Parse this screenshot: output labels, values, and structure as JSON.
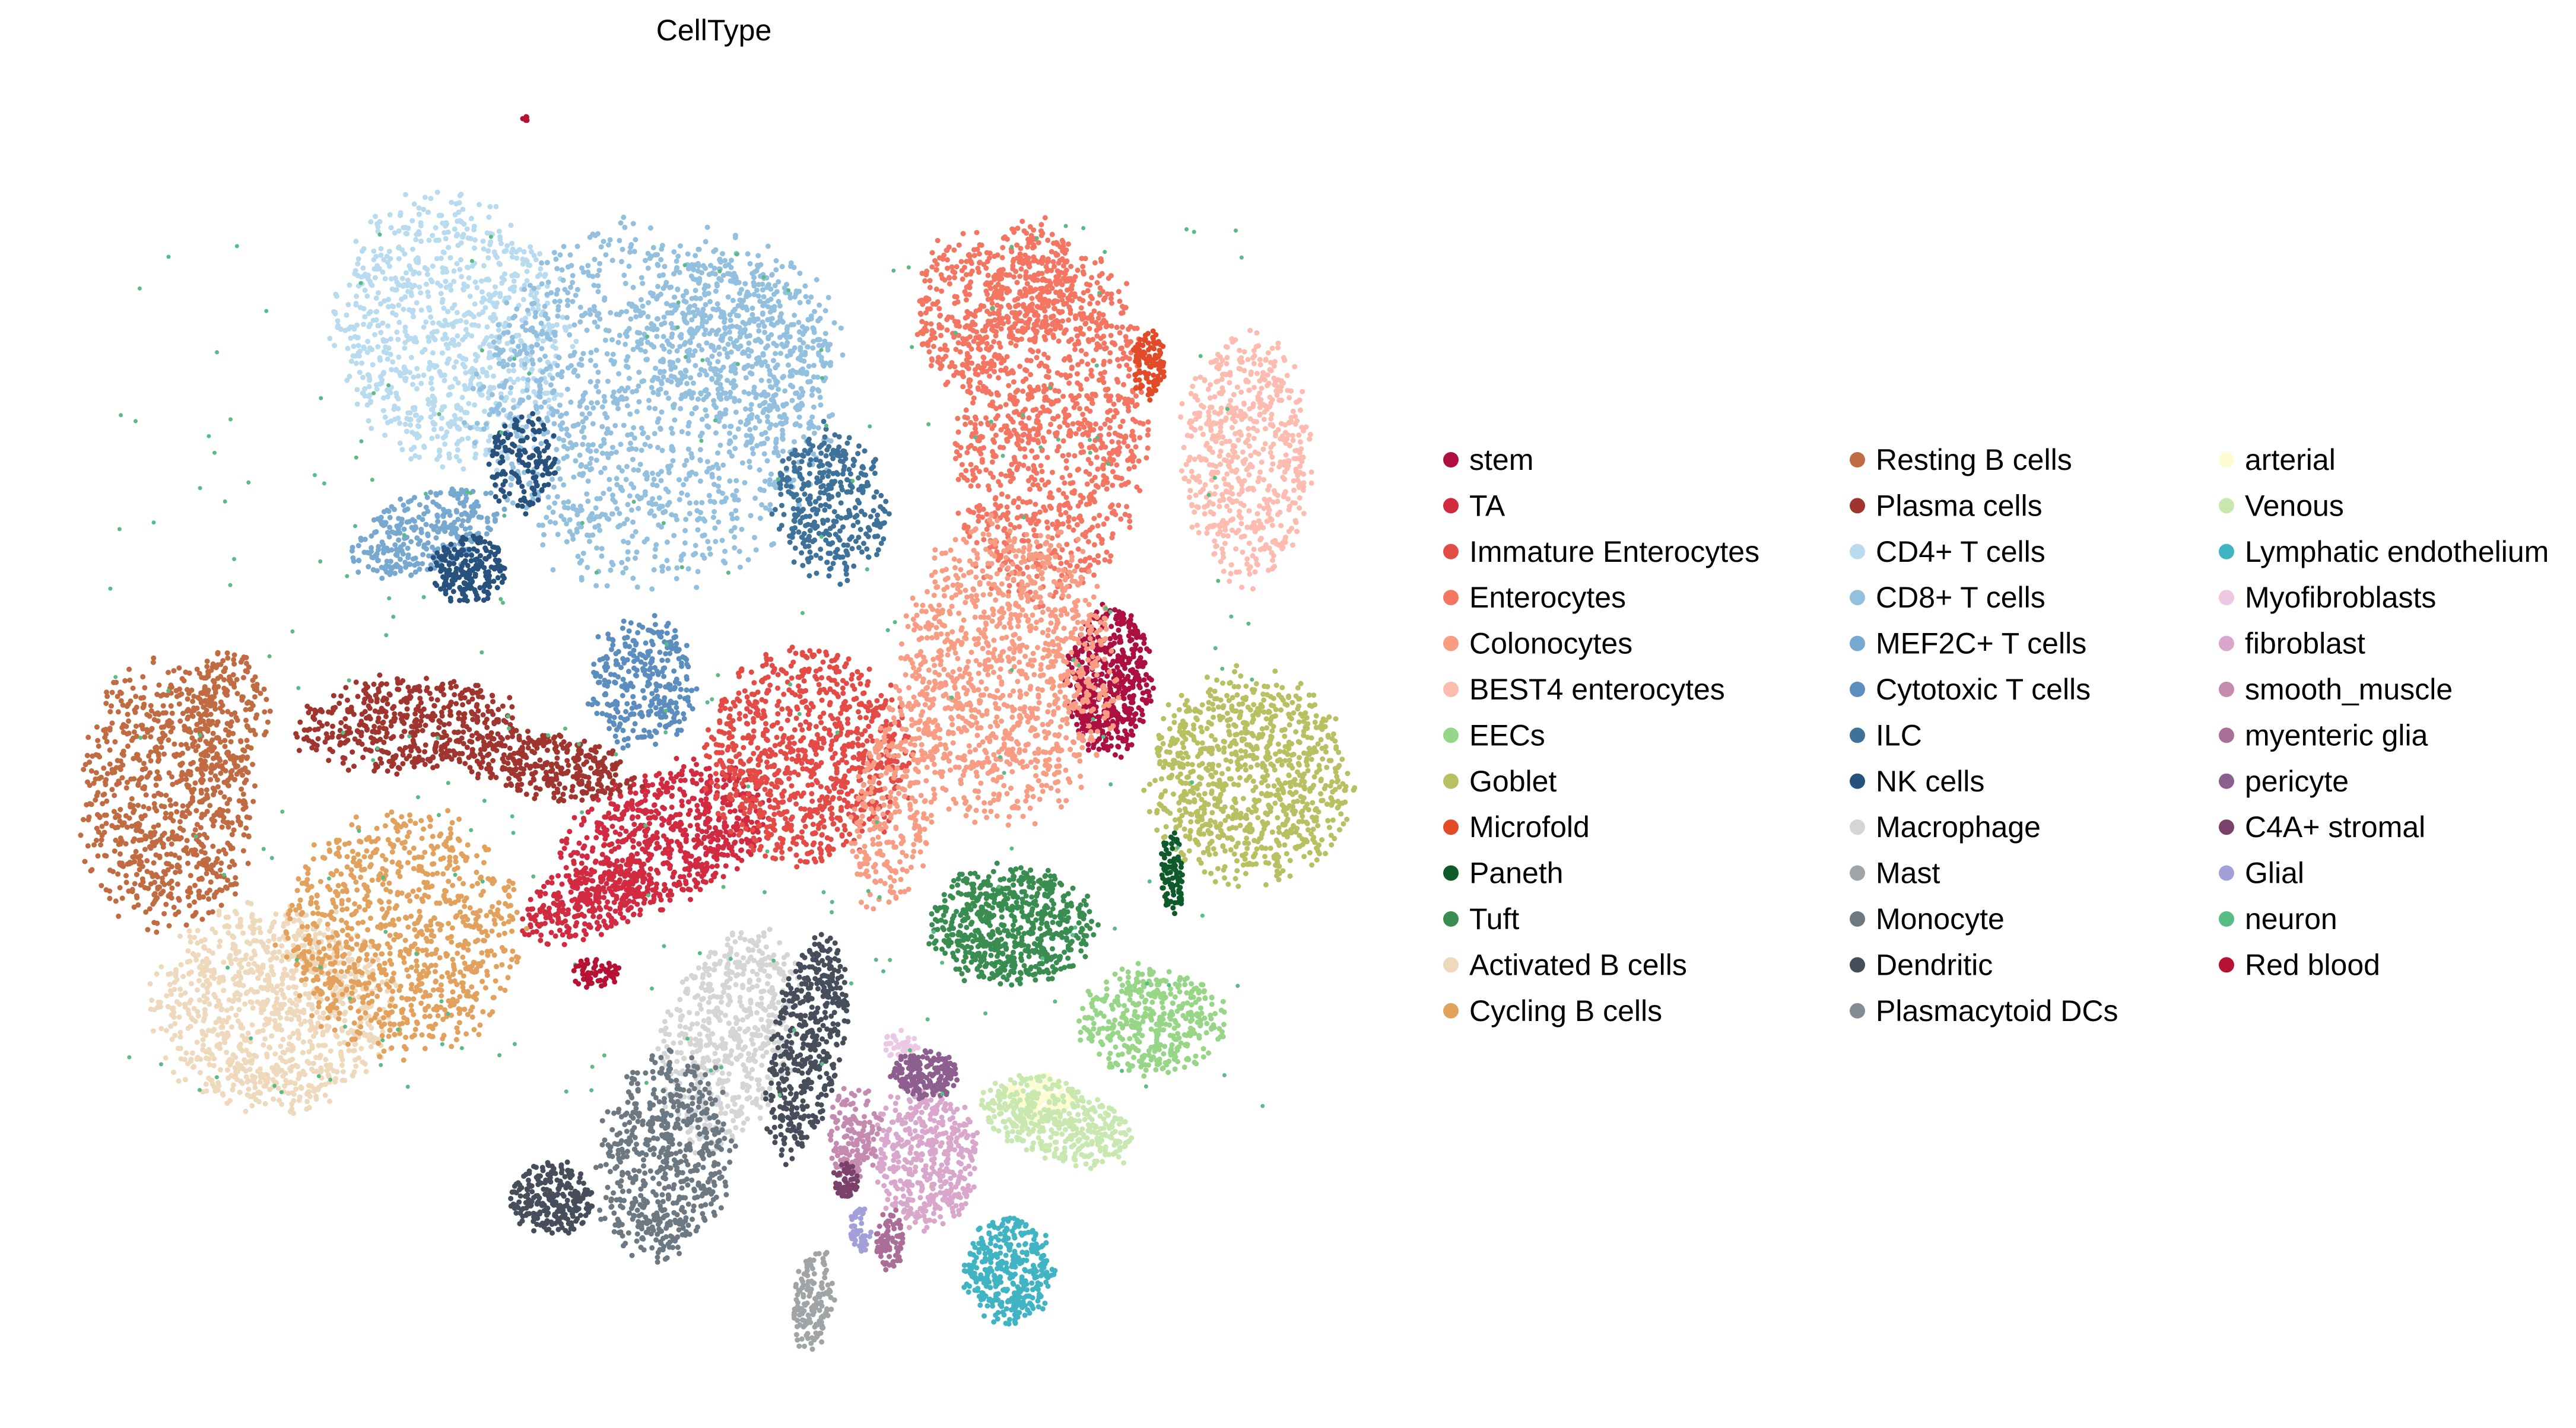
{
  "chart_data": {
    "type": "scatter",
    "title": "CellType",
    "xlabel": "",
    "ylabel": "",
    "grid": false,
    "axes_visible": false,
    "legend_placement": "right",
    "legend_columns": 3,
    "categories": [
      {
        "name": "stem",
        "color": "#ad1040"
      },
      {
        "name": "TA",
        "color": "#d22a40"
      },
      {
        "name": "Immature Enterocytes",
        "color": "#e54b46"
      },
      {
        "name": "Enterocytes",
        "color": "#f47562"
      },
      {
        "name": "Colonocytes",
        "color": "#f89c84"
      },
      {
        "name": "BEST4 enterocytes",
        "color": "#fdbcaf"
      },
      {
        "name": "EECs",
        "color": "#98d687"
      },
      {
        "name": "Goblet",
        "color": "#b8c062"
      },
      {
        "name": "Microfold",
        "color": "#e24a28"
      },
      {
        "name": "Paneth",
        "color": "#0e5a2a"
      },
      {
        "name": "Tuft",
        "color": "#3a8d51"
      },
      {
        "name": "Activated B cells",
        "color": "#eed9bc"
      },
      {
        "name": "Cycling B cells",
        "color": "#e2a25d"
      },
      {
        "name": "Resting B cells",
        "color": "#c16b42"
      },
      {
        "name": "Plasma cells",
        "color": "#a0352f"
      },
      {
        "name": "CD4+ T cells",
        "color": "#b9dbef"
      },
      {
        "name": "CD8+ T cells",
        "color": "#94c0df"
      },
      {
        "name": "MEF2C+ T cells",
        "color": "#77a8cf"
      },
      {
        "name": "Cytotoxic T cells",
        "color": "#5b8ebe"
      },
      {
        "name": "ILC",
        "color": "#3f729a"
      },
      {
        "name": "NK cells",
        "color": "#27527e"
      },
      {
        "name": "Macrophage",
        "color": "#d5d5d5"
      },
      {
        "name": "Mast",
        "color": "#a1a4a6"
      },
      {
        "name": "Monocyte",
        "color": "#6c7882"
      },
      {
        "name": "Dendritic",
        "color": "#474e5b"
      },
      {
        "name": "Plasmacytoid DCs",
        "color": "#858b92"
      },
      {
        "name": "arterial",
        "color": "#fdfbd0"
      },
      {
        "name": "Venous",
        "color": "#c8e8b0"
      },
      {
        "name": "Lymphatic endothelium",
        "color": "#40b4c2"
      },
      {
        "name": "Myofibroblasts",
        "color": "#ecc8e4"
      },
      {
        "name": "fibroblast",
        "color": "#d8a7cb"
      },
      {
        "name": "smooth_muscle",
        "color": "#c48aaf"
      },
      {
        "name": "myenteric glia",
        "color": "#ab6e99"
      },
      {
        "name": "pericyte",
        "color": "#8d5f8f"
      },
      {
        "name": "C4A+ stromal",
        "color": "#7a416b"
      },
      {
        "name": "Glial",
        "color": "#a39fd8"
      },
      {
        "name": "neuron",
        "color": "#58bc84"
      },
      {
        "name": "Red blood",
        "color": "#b71233"
      }
    ]
  }
}
